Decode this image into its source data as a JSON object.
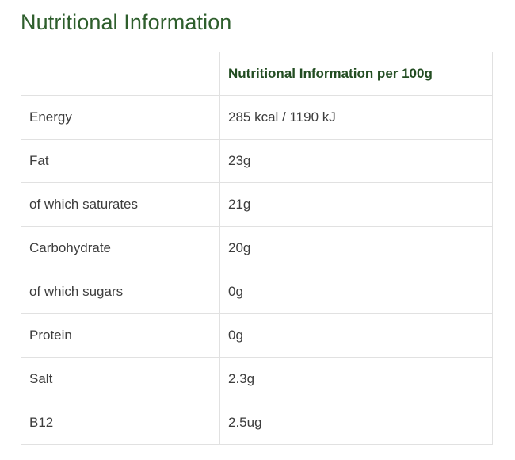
{
  "page": {
    "title": "Nutritional Information"
  },
  "table": {
    "headers": [
      "",
      "Nutritional Information per 100g"
    ],
    "rows": [
      {
        "label": "Energy",
        "value": "285 kcal / 1190 kJ"
      },
      {
        "label": "Fat",
        "value": "23g"
      },
      {
        "label": "of which saturates",
        "value": "21g"
      },
      {
        "label": "Carbohydrate",
        "value": "20g"
      },
      {
        "label": "of which sugars",
        "value": "0g"
      },
      {
        "label": "Protein",
        "value": "0g"
      },
      {
        "label": "Salt",
        "value": "2.3g"
      },
      {
        "label": "B12",
        "value": "2.5ug"
      }
    ]
  },
  "colors": {
    "title": "#2e5e2c",
    "header_text": "#234d22",
    "body_text": "#3d3d3d",
    "border": "#e1e1e1"
  }
}
